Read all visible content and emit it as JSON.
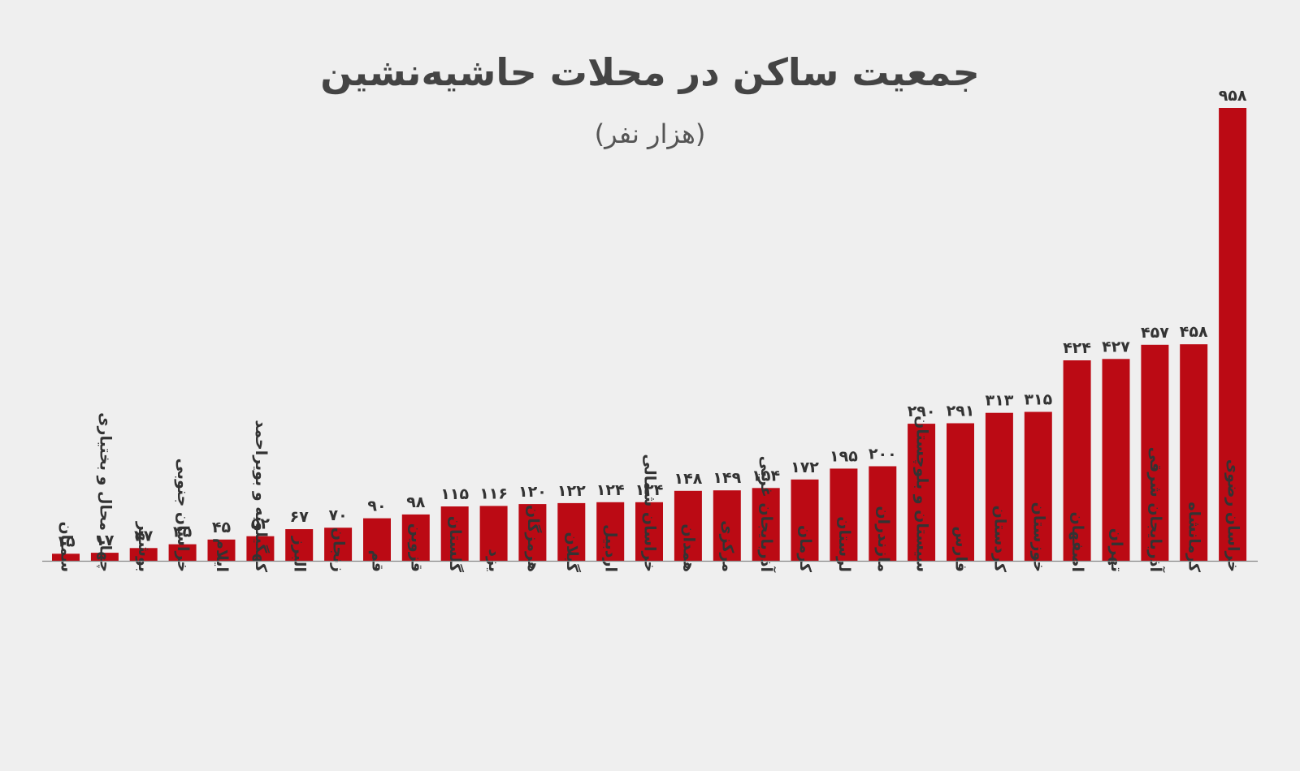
{
  "chart_data": {
    "type": "bar",
    "title": "جمعیت ساکن در محلات حاشیه‌نشین",
    "subtitle": "(هزار نفر)",
    "categories": [
      "سمنان",
      "چهار محال و بختیاری",
      "بوشهر",
      "خراسان جنوبی",
      "ایلام",
      "کهگیلویه و بویراحمد",
      "البرز",
      "زنجان",
      "قم",
      "قزوین",
      "گلستان",
      "یزد",
      "هرمزگان",
      "گیلان",
      "اردبیل",
      "خراسان شمالی",
      "همدان",
      "مرکزی",
      "آذربایجان غربی",
      "کرمان",
      "لرستان",
      "مازندران",
      "سیستان و بلوچستان",
      "فارس",
      "کردستان",
      "خوزستان",
      "اصفهان",
      "تهران",
      "آذربایجان شرقی",
      "کرمانشاه",
      "خراسان رضوی"
    ],
    "values": [
      15,
      17,
      27,
      35,
      45,
      52,
      67,
      70,
      90,
      98,
      115,
      116,
      120,
      122,
      124,
      124,
      148,
      149,
      154,
      172,
      195,
      200,
      290,
      291,
      313,
      315,
      424,
      427,
      457,
      458,
      958
    ],
    "value_labels": [
      "۱۵",
      "۱۷",
      "۲۷",
      "۳۵",
      "۴۵",
      "۵۲",
      "۶۷",
      "۷۰",
      "۹۰",
      "۹۸",
      "۱۱۵",
      "۱۱۶",
      "۱۲۰",
      "۱۲۲",
      "۱۲۴",
      "۱۲۴",
      "۱۴۸",
      "۱۴۹",
      "۱۵۴",
      "۱۷۲",
      "۱۹۵",
      "۲۰۰",
      "۲۹۰",
      "۲۹۱",
      "۳۱۳",
      "۳۱۵",
      "۴۲۴",
      "۴۲۷",
      "۴۵۷",
      "۴۵۸",
      "۹۵۸"
    ],
    "xlabel": "",
    "ylabel": "",
    "ylim": [
      0,
      958
    ],
    "grid": false,
    "colors": {
      "bar": "#bb0a14",
      "axis": "#888888",
      "background": "#efefef"
    }
  }
}
